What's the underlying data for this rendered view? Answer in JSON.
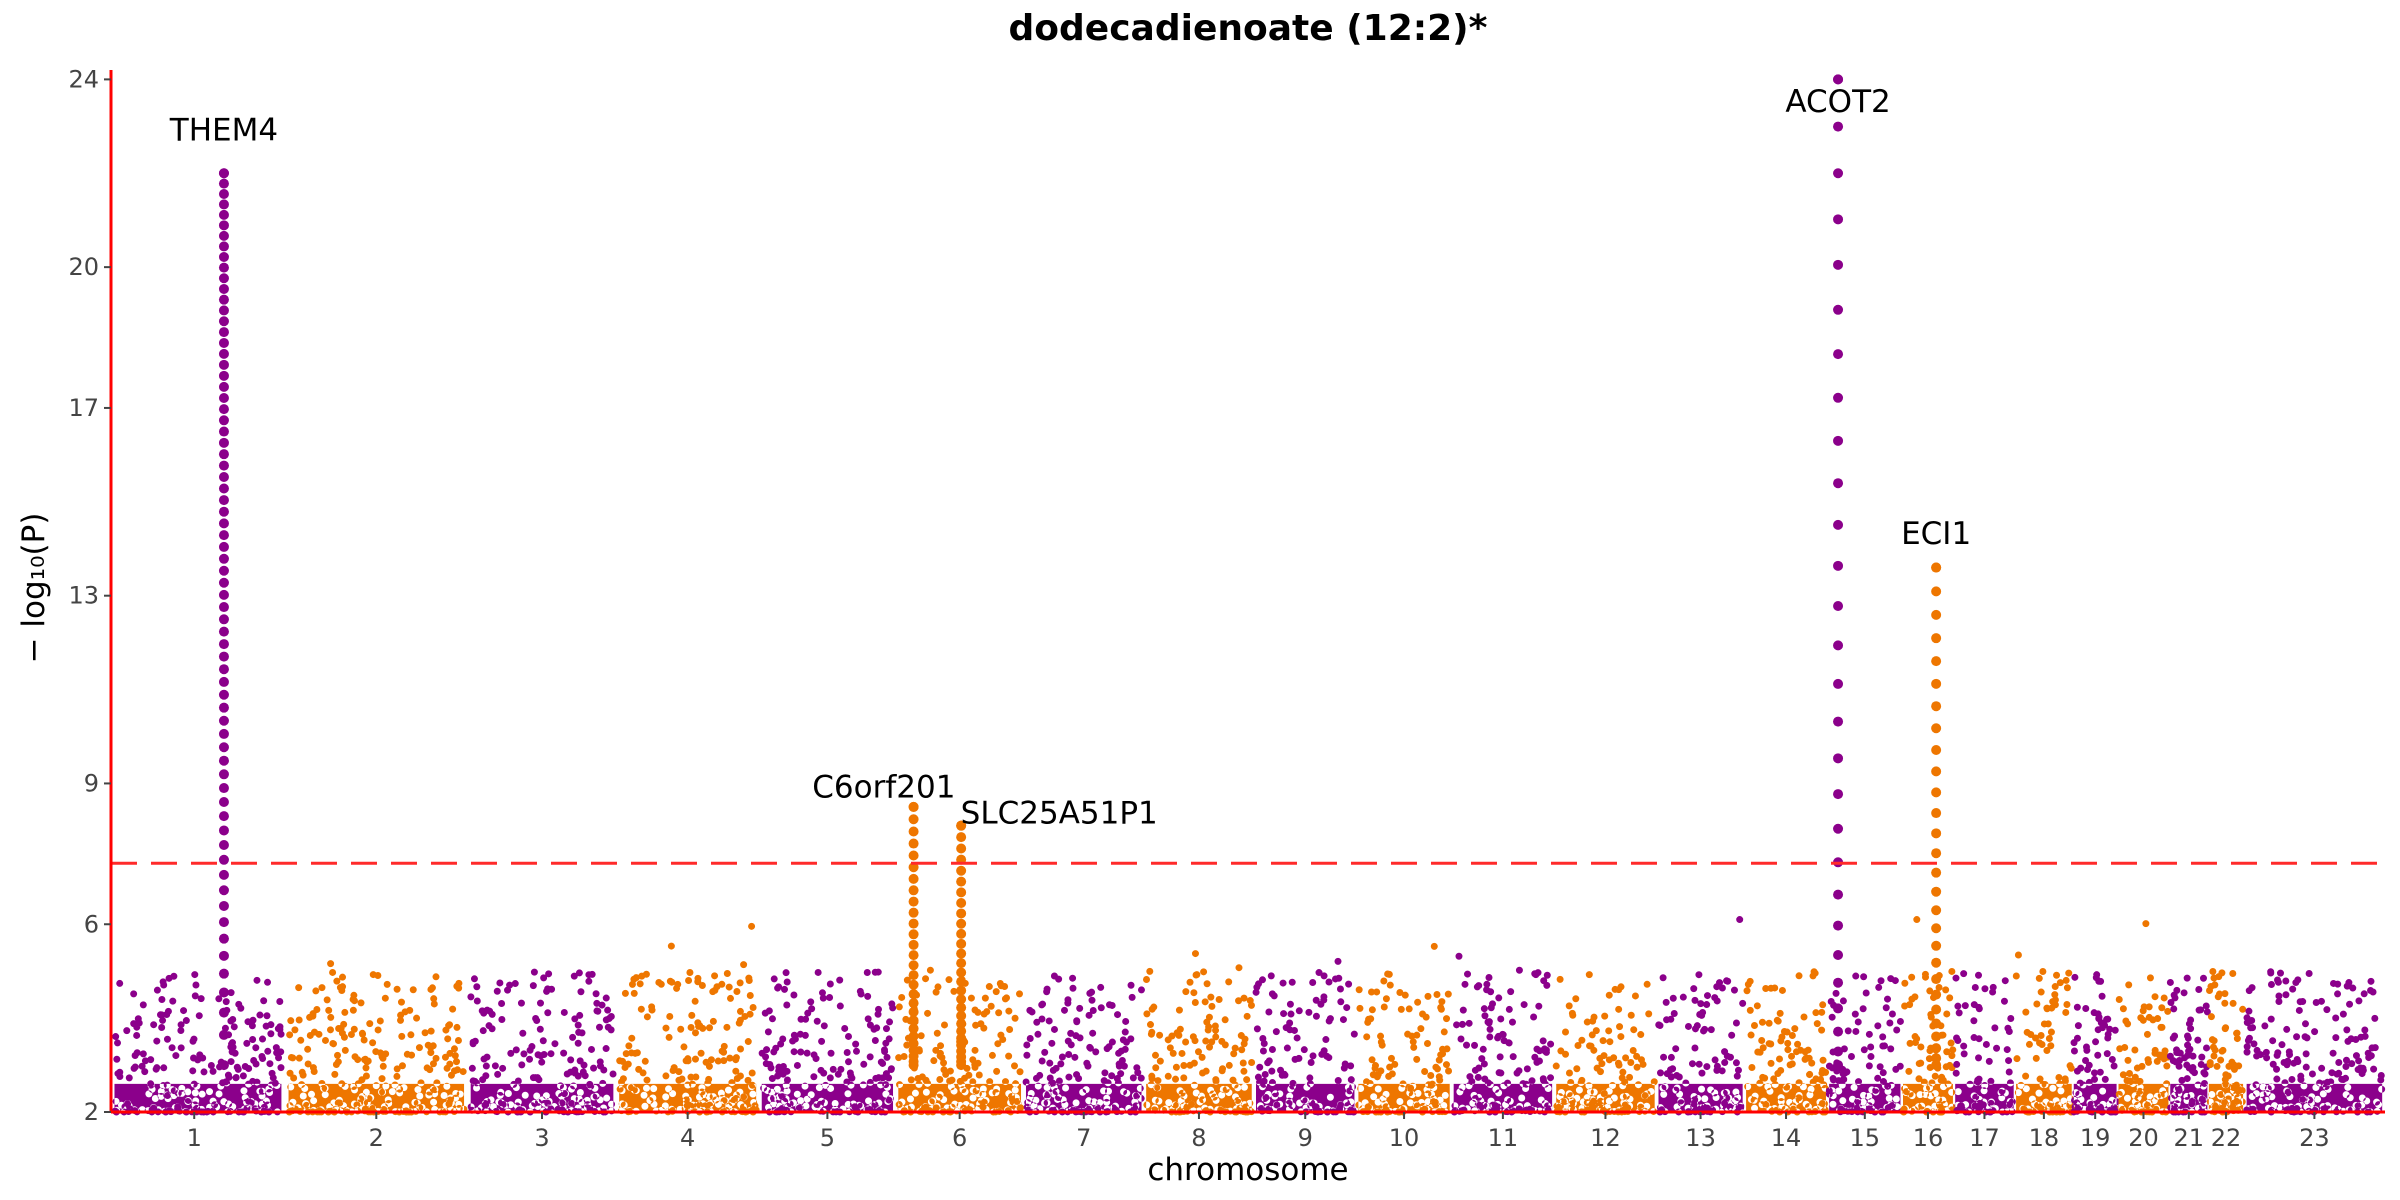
{
  "chart_data": {
    "type": "scatter",
    "subtype": "manhattan",
    "title": "dodecadienoate (12:2)*",
    "xlabel": "chromosome",
    "ylabel": "− log₁₀(P)",
    "ylim": [
      2,
      24.2
    ],
    "y_ticks": [
      2,
      6,
      9,
      13,
      17,
      20,
      24
    ],
    "grid": false,
    "significance_threshold": 7.3,
    "colors": {
      "odd": "#8b008b",
      "even": "#ee7600",
      "threshold": "#ff2a2a",
      "axis": "#ff0000"
    },
    "chromosomes": [
      {
        "label": "1",
        "start": 0,
        "end": 1170
      },
      {
        "label": "2",
        "start": 1170,
        "end": 2400
      },
      {
        "label": "3",
        "start": 2400,
        "end": 3400
      },
      {
        "label": "4",
        "start": 3400,
        "end": 4360
      },
      {
        "label": "5",
        "start": 4360,
        "end": 5280
      },
      {
        "label": "6",
        "start": 5280,
        "end": 6140
      },
      {
        "label": "7",
        "start": 6140,
        "end": 6950
      },
      {
        "label": "8",
        "start": 6950,
        "end": 7690
      },
      {
        "label": "9",
        "start": 7690,
        "end": 8380
      },
      {
        "label": "10",
        "start": 8380,
        "end": 9020
      },
      {
        "label": "11",
        "start": 9020,
        "end": 9710
      },
      {
        "label": "12",
        "start": 9710,
        "end": 10400
      },
      {
        "label": "13",
        "start": 10400,
        "end": 10990
      },
      {
        "label": "14",
        "start": 10990,
        "end": 11550
      },
      {
        "label": "15",
        "start": 11550,
        "end": 12050
      },
      {
        "label": "16",
        "start": 12050,
        "end": 12400
      },
      {
        "label": "17",
        "start": 12400,
        "end": 12810
      },
      {
        "label": "18",
        "start": 12810,
        "end": 13200
      },
      {
        "label": "19",
        "start": 13200,
        "end": 13500
      },
      {
        "label": "20",
        "start": 13500,
        "end": 13850
      },
      {
        "label": "21",
        "start": 13850,
        "end": 14110
      },
      {
        "label": "22",
        "start": 14110,
        "end": 14350
      },
      {
        "label": "23",
        "start": 14350,
        "end": 15300
      }
    ],
    "peaks": [
      {
        "gene": "THEM4",
        "x": 760,
        "ymax": 22.0,
        "ymin": 7.6,
        "dense": true
      },
      {
        "gene": "C6orf201",
        "x": 5400,
        "ymax": 8.5,
        "ymin": 7.5,
        "dense": false
      },
      {
        "gene": "SLC25A51P1",
        "x": 5720,
        "ymax": 8.1,
        "ymin": 7.4,
        "dense": false
      },
      {
        "gene": "ACOT2",
        "x": 11620,
        "ymax": 24.0,
        "ymin": 8.8,
        "dense": false
      },
      {
        "gene": "ECI1",
        "x": 12280,
        "ymax": 13.6,
        "ymin": 8.9,
        "dense": false
      }
    ],
    "annotations": [
      {
        "text": "THEM4",
        "x": 760,
        "y": 22.7,
        "anchor": "middle"
      },
      {
        "text": "C6orf201",
        "x": 5200,
        "y": 8.7,
        "anchor": "middle"
      },
      {
        "text": "SLC25A51P1",
        "x": 6380,
        "y": 8.15,
        "anchor": "middle"
      },
      {
        "text": "ACOT2",
        "x": 11620,
        "y": 23.3,
        "anchor": "middle"
      },
      {
        "text": "ECI1",
        "x": 12280,
        "y": 14.1,
        "anchor": "middle"
      }
    ]
  }
}
